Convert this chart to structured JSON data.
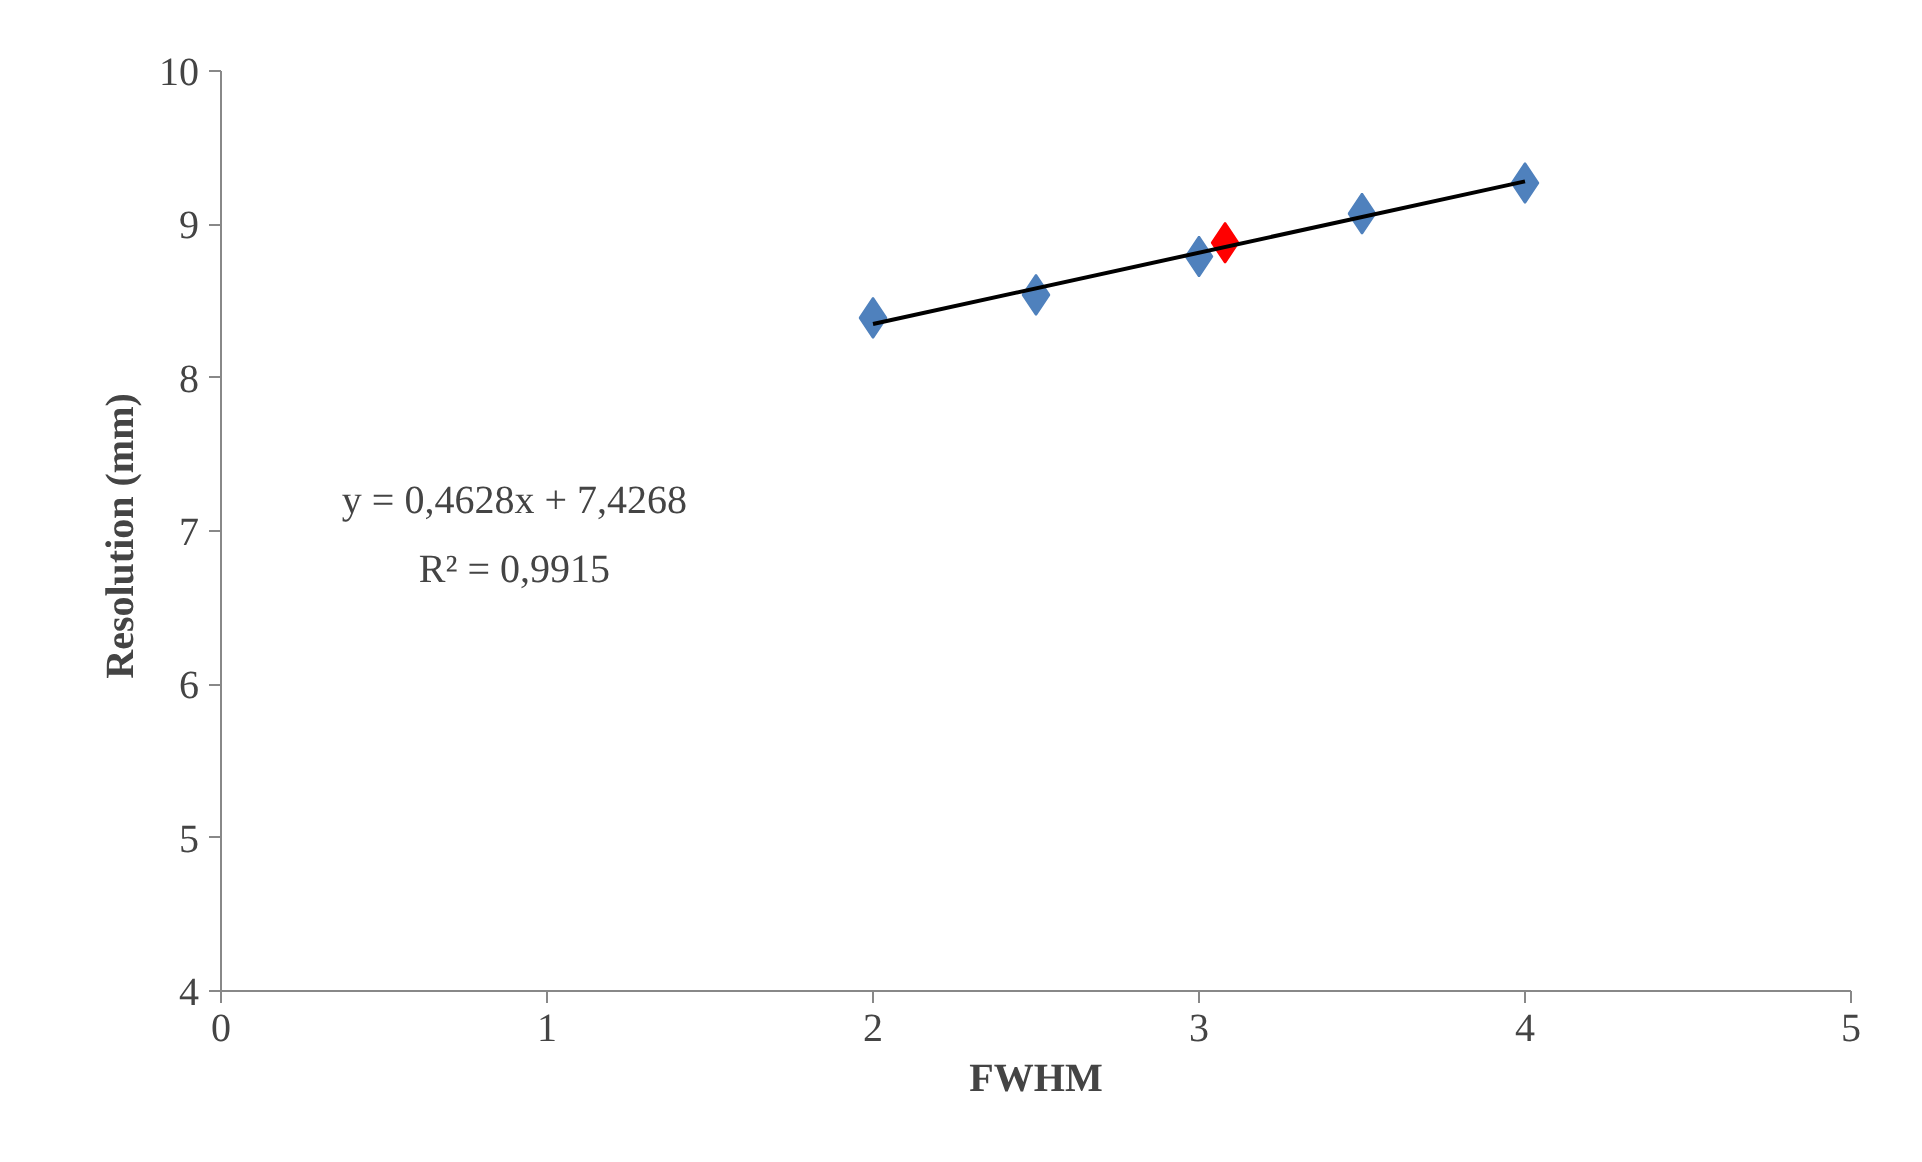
{
  "chart_data": {
    "type": "scatter",
    "xlabel": "FWHM",
    "ylabel": "Resolution  (mm)",
    "xlim": [
      0,
      5
    ],
    "ylim": [
      4,
      10
    ],
    "xticks": [
      0,
      1,
      2,
      3,
      4,
      5
    ],
    "yticks": [
      4,
      5,
      6,
      7,
      8,
      9,
      10
    ],
    "grid": false,
    "series": [
      {
        "type": "line",
        "marker": "none",
        "color": "#000000",
        "x": [
          2,
          4
        ],
        "values": [
          8.35,
          9.28
        ]
      },
      {
        "marker": "diamond",
        "color": "#4f81bd",
        "x": [
          2,
          2.5,
          3,
          3.5,
          4
        ],
        "values": [
          8.39,
          8.54,
          8.79,
          9.07,
          9.27
        ]
      },
      {
        "marker": "diamond",
        "color": "#ff0000",
        "x": [
          3.08
        ],
        "values": [
          8.88
        ]
      }
    ],
    "annotations": [
      "y = 0,4628x + 7,4268",
      "R² = 0,9915"
    ]
  }
}
